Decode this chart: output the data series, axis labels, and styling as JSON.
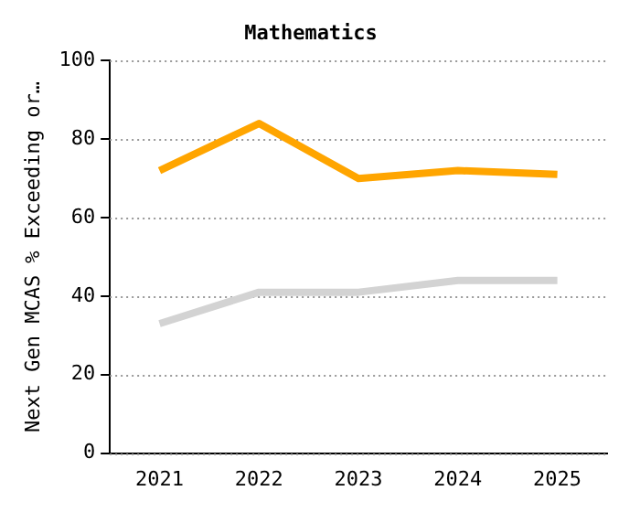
{
  "chart_data": {
    "type": "line",
    "title": "Mathematics",
    "ylabel": "Next Gen MCAS % Exceeding or…",
    "categories": [
      "2021",
      "2022",
      "2023",
      "2024",
      "2025"
    ],
    "series": [
      {
        "color": "#ffa500",
        "values": [
          72,
          84,
          70,
          72,
          71
        ]
      },
      {
        "color": "#d3d3d3",
        "values": [
          33,
          41,
          41,
          44,
          44
        ]
      }
    ],
    "ylim": [
      0,
      100
    ],
    "yticks": [
      0,
      20,
      40,
      60,
      80,
      100
    ],
    "grid": "y",
    "legend": false,
    "marker": "none",
    "line_style": "solid"
  }
}
